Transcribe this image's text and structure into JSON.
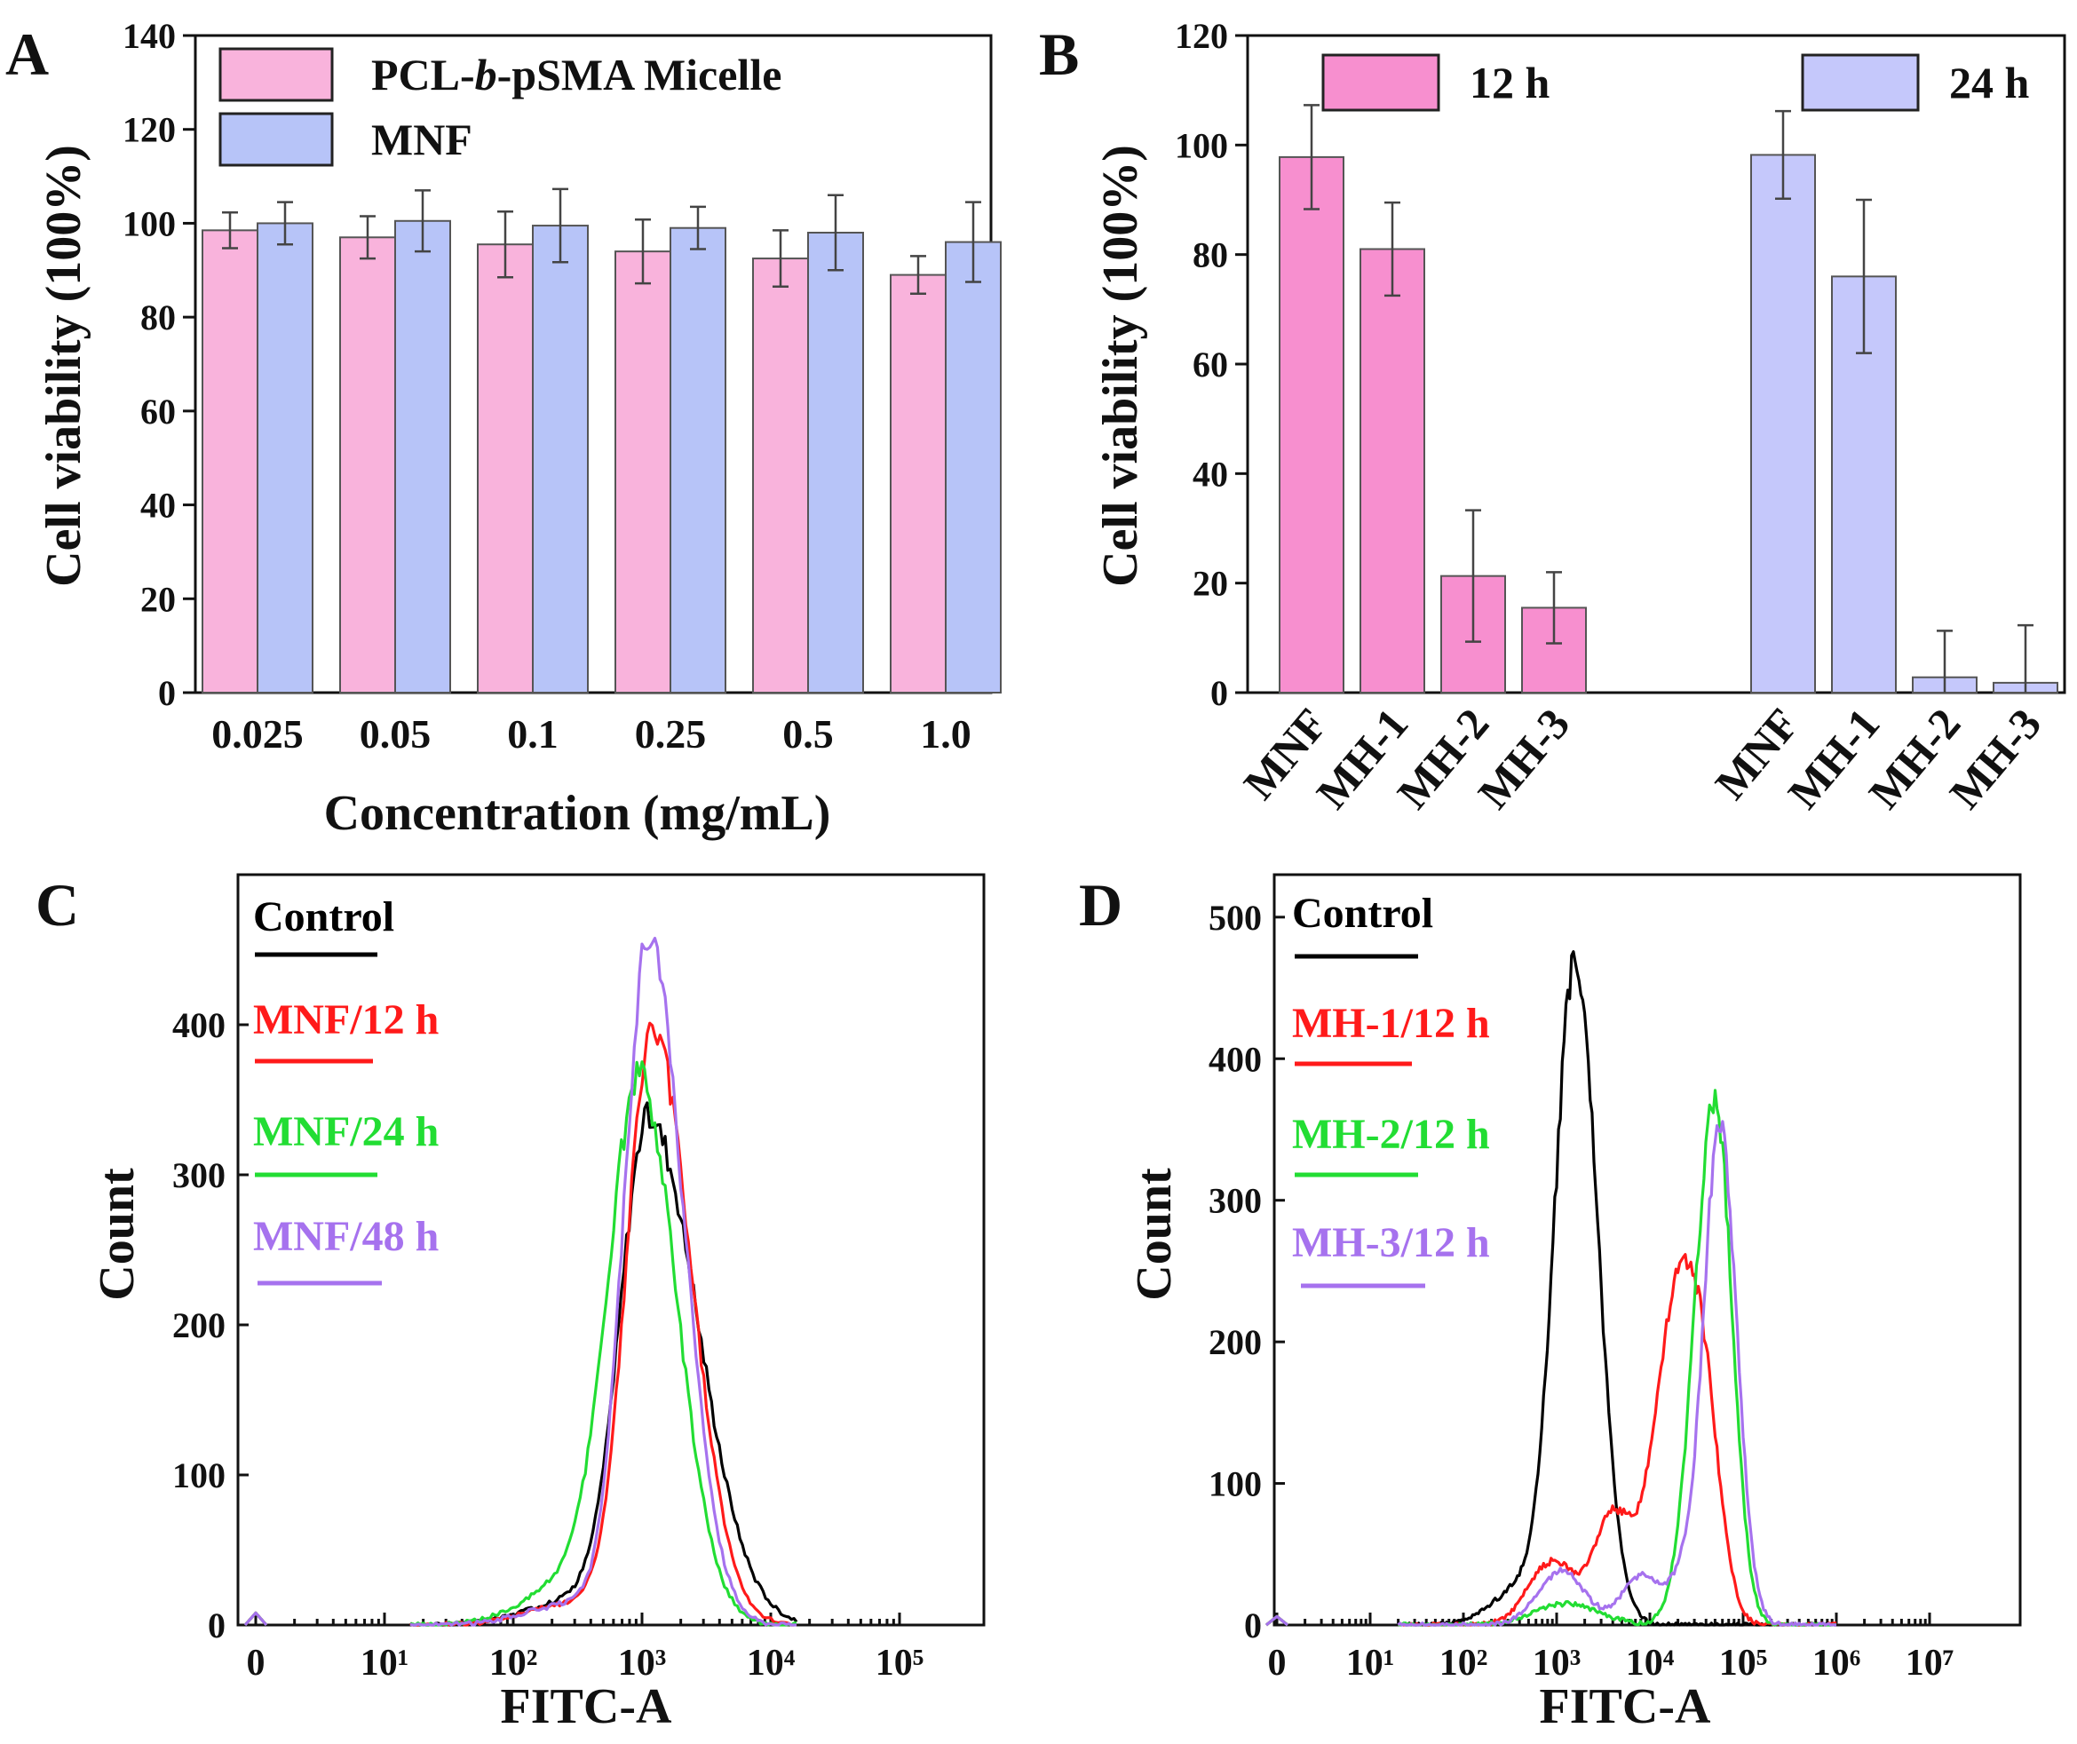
{
  "colors": {
    "pink": "#f9b3dc",
    "blue": "#b7c4f8",
    "pink12": "#f78fcf",
    "lav24": "#c5c8fb",
    "control": "#000000",
    "red": "#ff1a1a",
    "green": "#22dd33",
    "purple": "#a672ee"
  },
  "chart_data": [
    {
      "panel": "A",
      "type": "bar",
      "title": "",
      "xlabel": "Concentration (mg/mL)",
      "ylabel": "Cell viability (100%)",
      "ylim": [
        0,
        140
      ],
      "yticks": [
        "0",
        "20",
        "40",
        "60",
        "80",
        "100",
        "120",
        "140"
      ],
      "categories": [
        "0.025",
        "0.05",
        "0.1",
        "0.25",
        "0.5",
        "1.0"
      ],
      "legend_position": "top-left",
      "series": [
        {
          "name": "PCL-b-pSMA Micelle",
          "color": "#f9b3dc",
          "values": [
            98.5,
            97.0,
            95.5,
            94.0,
            92.5,
            89.0
          ],
          "errors": [
            3.8,
            4.5,
            7.0,
            6.8,
            6.0,
            4.0
          ]
        },
        {
          "name": "MNF",
          "color": "#b7c4f8",
          "values": [
            100.0,
            100.5,
            99.5,
            99.0,
            98.0,
            96.0
          ],
          "errors": [
            4.5,
            6.5,
            7.8,
            4.5,
            8.0,
            8.5
          ]
        }
      ]
    },
    {
      "panel": "B",
      "type": "bar",
      "title": "",
      "xlabel": "",
      "ylabel": "Cell viability (100%)",
      "ylim": [
        0,
        120
      ],
      "yticks": [
        "0",
        "20",
        "40",
        "60",
        "80",
        "100",
        "120"
      ],
      "legend_position": "top",
      "series": [
        {
          "name": "12 h",
          "color": "#f78fcf",
          "categories": [
            "MNF",
            "MH-1",
            "MH-2",
            "MH-3"
          ],
          "values": [
            97.8,
            81.0,
            21.3,
            15.5
          ],
          "errors": [
            9.5,
            8.5,
            12.0,
            6.5
          ]
        },
        {
          "name": "24 h",
          "color": "#c5c8fb",
          "categories": [
            "MNF",
            "MH-1",
            "MH-2",
            "MH-3"
          ],
          "values": [
            98.2,
            76.0,
            2.8,
            1.8
          ],
          "errors": [
            8.0,
            14.0,
            8.5,
            10.5
          ]
        }
      ]
    },
    {
      "panel": "C",
      "type": "line",
      "title": "",
      "xlabel": "FITC-A",
      "ylabel": "Count",
      "ylim": [
        0,
        480
      ],
      "yticks": [
        "0",
        "100",
        "200",
        "300",
        "400"
      ],
      "xticks": [
        "0",
        "10¹",
        "10²",
        "10³",
        "10⁴",
        "10⁵"
      ],
      "x_scale": "log (decades)",
      "legend_position": "top-left",
      "series": [
        {
          "name": "Control",
          "color": "#000000",
          "peak_log": 3.05,
          "peak": 338,
          "width_left": 0.22,
          "width_right": 0.38,
          "shoulder_log": 2.45,
          "shoulder": 16
        },
        {
          "name": "MNF/12 h",
          "color": "#ff1a1a",
          "peak_log": 3.08,
          "peak": 396,
          "width_left": 0.2,
          "width_right": 0.3,
          "shoulder_log": 2.45,
          "shoulder": 14
        },
        {
          "name": "MNF/24 h",
          "color": "#22dd33",
          "peak_log": 2.98,
          "peak": 362,
          "width_left": 0.24,
          "width_right": 0.29,
          "shoulder_log": 2.45,
          "shoulder": 28
        },
        {
          "name": "MNF/48 h",
          "color": "#a672ee",
          "peak_log": 3.05,
          "peak": 458,
          "width_left": 0.19,
          "width_right": 0.27,
          "shoulder_log": 2.45,
          "shoulder": 14
        }
      ]
    },
    {
      "panel": "D",
      "type": "line",
      "title": "",
      "xlabel": "FITC-A",
      "ylabel": "Count",
      "ylim": [
        0,
        500
      ],
      "yticks": [
        "0",
        "100",
        "200",
        "300",
        "400",
        "500"
      ],
      "xticks": [
        "0",
        "10¹",
        "10²",
        "10³",
        "10⁴",
        "10⁵",
        "10⁶",
        "10⁷"
      ],
      "x_scale": "log (decades)",
      "legend_position": "top-left",
      "series": [
        {
          "name": "Control",
          "color": "#000000",
          "components": [
            [
              3.2,
              465,
              0.22,
              0.24
            ],
            [
              2.6,
              25,
              0.3,
              0.3
            ]
          ]
        },
        {
          "name": "MH-1/12 h",
          "color": "#ff1a1a",
          "components": [
            [
              4.3,
              235,
              0.25,
              0.22
            ],
            [
              4.6,
              105,
              0.15,
              0.18
            ],
            [
              3.6,
              75,
              0.2,
              0.2
            ],
            [
              2.95,
              45,
              0.25,
              0.25
            ]
          ]
        },
        {
          "name": "MH-2/12 h",
          "color": "#22dd33",
          "components": [
            [
              4.7,
              372,
              0.22,
              0.18
            ],
            [
              3.1,
              15,
              0.35,
              0.35
            ]
          ]
        },
        {
          "name": "MH-3/12 h",
          "color": "#a672ee",
          "components": [
            [
              4.75,
              355,
              0.17,
              0.18
            ],
            [
              3.05,
              38,
              0.25,
              0.25
            ],
            [
              3.9,
              35,
              0.2,
              0.2
            ],
            [
              4.35,
              30,
              0.15,
              0.15
            ]
          ]
        }
      ]
    }
  ]
}
